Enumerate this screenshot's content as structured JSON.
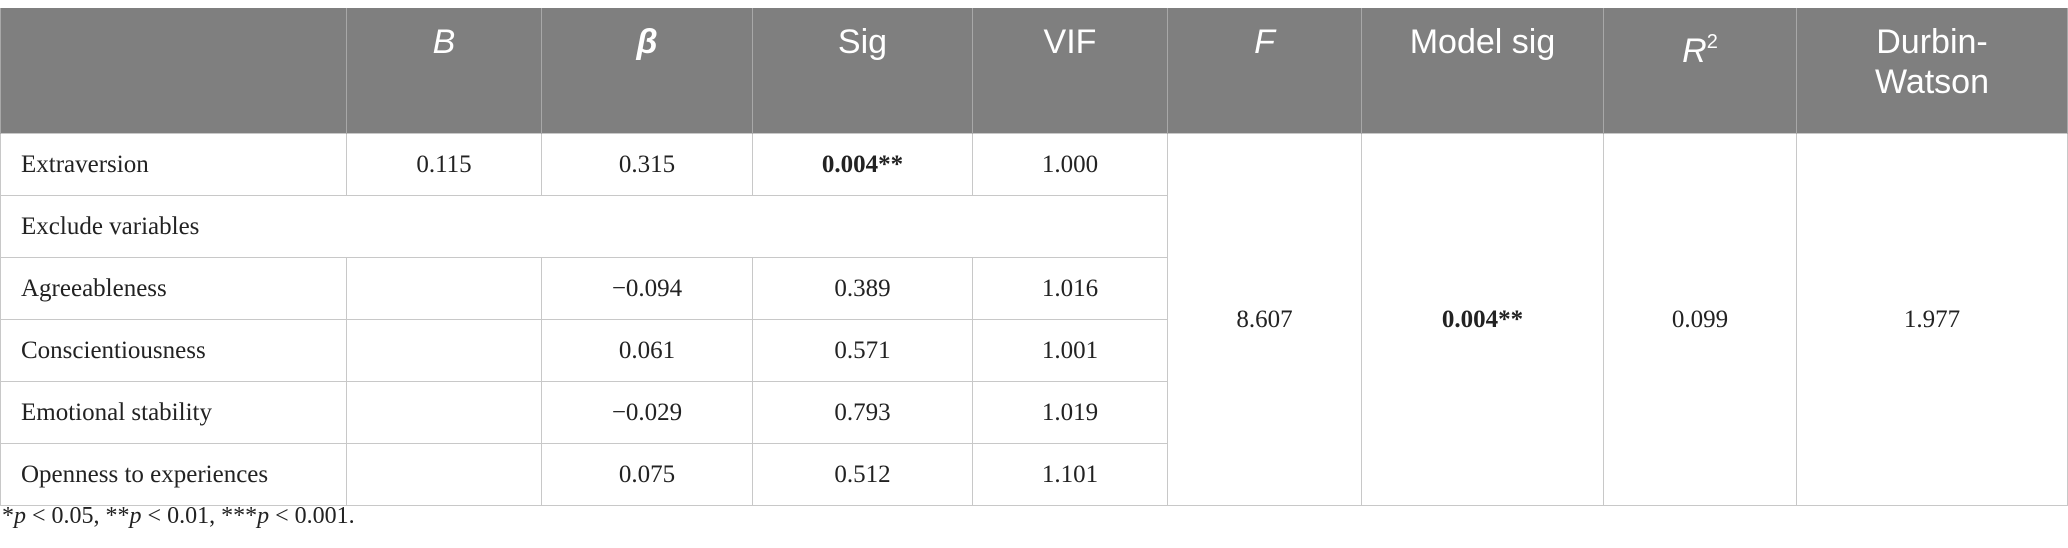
{
  "table": {
    "header": [
      null,
      {
        "text": "B",
        "italic": true
      },
      {
        "text": "β",
        "italic": true,
        "bold": true
      },
      {
        "text": "Sig"
      },
      {
        "text": "VIF"
      },
      {
        "text": "F",
        "italic": true
      },
      {
        "text": "Model sig"
      },
      {
        "text": "R",
        "italic": true,
        "sup": "2"
      },
      {
        "text": "Durbin-Watson"
      }
    ],
    "rows": [
      [
        "Extraversion",
        "0.115",
        "0.315",
        {
          "text": "0.004**",
          "bold": true
        },
        "1.000"
      ],
      [
        "Exclude variables"
      ],
      [
        "Agreeableness",
        null,
        "−0.094",
        "0.389",
        "1.016"
      ],
      [
        "Conscientiousness",
        null,
        "0.061",
        "0.571",
        "1.001"
      ],
      [
        "Emotional stability",
        null,
        "−0.029",
        "0.793",
        "1.019"
      ],
      [
        "Openness to experiences",
        null,
        "0.075",
        "0.512",
        "1.101"
      ]
    ],
    "model": [
      "8.607",
      {
        "text": "0.004**",
        "bold": true
      },
      "0.099",
      "1.977"
    ],
    "footnote": [
      {
        "text": "*"
      },
      {
        "text": "p",
        "italic": true
      },
      {
        "text": " < 0.05, **"
      },
      {
        "text": "p",
        "italic": true
      },
      {
        "text": " < 0.01, ***"
      },
      {
        "text": "p",
        "italic": true
      },
      {
        "text": " < 0.001."
      }
    ]
  }
}
